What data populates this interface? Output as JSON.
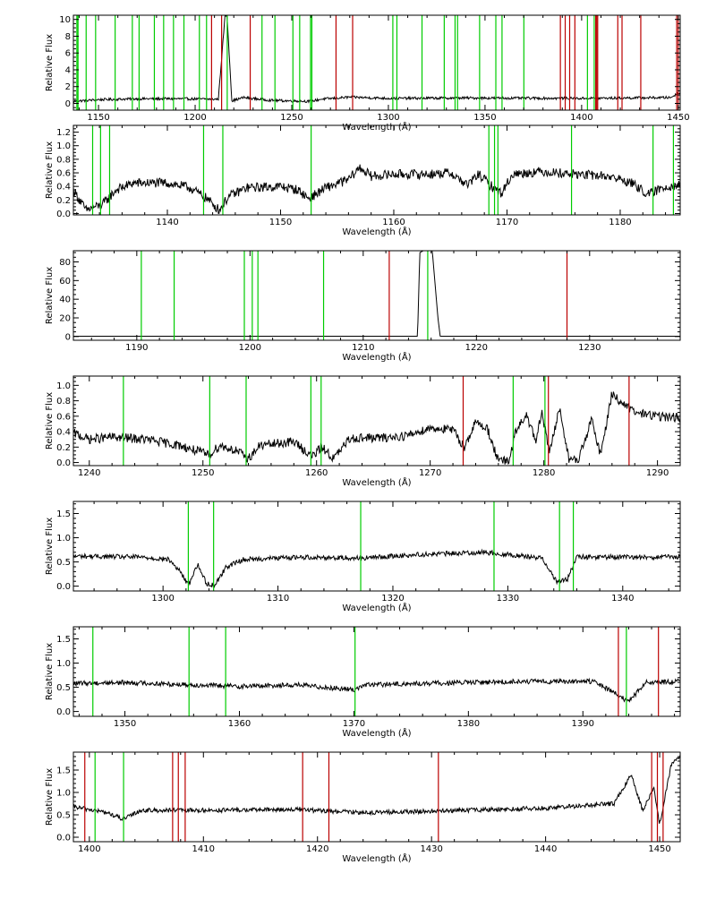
{
  "colors": {
    "background": "#ffffff",
    "spectrum": "#000000",
    "green_line": "#00cc00",
    "red_line": "#bb0000"
  },
  "chart_data": [
    {
      "type": "line",
      "xlabel": "Wavelength (Å)",
      "ylabel": "Relative Flux",
      "xlim": [
        1137,
        1451
      ],
      "ylim": [
        -0.8,
        10.5
      ],
      "xticks": [
        1150,
        1200,
        1250,
        1300,
        1350,
        1400,
        1450
      ],
      "yticks": [
        0,
        2,
        4,
        6,
        8,
        10
      ],
      "series": [
        {
          "points": [
            [
              1137,
              0.25
            ],
            [
              1150,
              0.45
            ],
            [
              1170,
              0.55
            ],
            [
              1195,
              0.55
            ],
            [
              1212,
              0.5
            ],
            [
              1215.5,
              10.5
            ],
            [
              1216.5,
              10.5
            ],
            [
              1219,
              0.3
            ],
            [
              1225,
              0.7
            ],
            [
              1240,
              0.35
            ],
            [
              1260,
              0.25
            ],
            [
              1265,
              0.5
            ],
            [
              1280,
              0.75
            ],
            [
              1300,
              0.6
            ],
            [
              1340,
              0.65
            ],
            [
              1400,
              0.6
            ],
            [
              1446,
              0.7
            ],
            [
              1450,
              1.2
            ]
          ],
          "noise": 0.15
        }
      ],
      "green_lines": [
        1138.8,
        1139.4,
        1143.6,
        1148.5,
        1158.6,
        1167.5,
        1171.0,
        1178.9,
        1183.7,
        1188.8,
        1194.2,
        1202.2,
        1205.9,
        1216.6,
        1234.6,
        1241.3,
        1250.6,
        1254.1,
        1259.7,
        1260.4,
        1302.3,
        1304.4,
        1317.4,
        1328.9,
        1334.5,
        1335.8,
        1347.2,
        1355.6,
        1358.8,
        1370.1,
        1403.0,
        1406.5
      ],
      "red_lines": [
        1208.5,
        1213.7,
        1228.5,
        1272.9,
        1281.5,
        1389.0,
        1391.5,
        1393.8,
        1396.5,
        1407.3,
        1407.8,
        1408.3,
        1418.7,
        1420.9,
        1430.6,
        1449.2,
        1450.0
      ]
    },
    {
      "type": "line",
      "xlabel": "Wavelength (Å)",
      "ylabel": "Relative Flux",
      "xlim": [
        1131.7,
        1185.3
      ],
      "ylim": [
        -0.02,
        1.3
      ],
      "xticks": [
        1140,
        1150,
        1160,
        1170,
        1180
      ],
      "yticks": [
        0.0,
        0.2,
        0.4,
        0.6,
        0.8,
        1.0,
        1.2
      ],
      "series": [
        {
          "points": [
            [
              1131.7,
              0.35
            ],
            [
              1132.8,
              0.05
            ],
            [
              1133.6,
              0.1
            ],
            [
              1134.2,
              0.12
            ],
            [
              1135.5,
              0.35
            ],
            [
              1137,
              0.45
            ],
            [
              1140,
              0.45
            ],
            [
              1142,
              0.38
            ],
            [
              1143.5,
              0.22
            ],
            [
              1144.6,
              0.05
            ],
            [
              1145.4,
              0.25
            ],
            [
              1147,
              0.38
            ],
            [
              1150,
              0.4
            ],
            [
              1151.5,
              0.35
            ],
            [
              1152.5,
              0.22
            ],
            [
              1154,
              0.38
            ],
            [
              1156,
              0.5
            ],
            [
              1157,
              0.68
            ],
            [
              1158,
              0.55
            ],
            [
              1160,
              0.58
            ],
            [
              1163,
              0.58
            ],
            [
              1165,
              0.6
            ],
            [
              1166.5,
              0.42
            ],
            [
              1167.5,
              0.58
            ],
            [
              1168.8,
              0.38
            ],
            [
              1169.5,
              0.3
            ],
            [
              1170.5,
              0.58
            ],
            [
              1173,
              0.62
            ],
            [
              1176,
              0.58
            ],
            [
              1179,
              0.55
            ],
            [
              1181,
              0.45
            ],
            [
              1182.5,
              0.28
            ],
            [
              1184,
              0.4
            ],
            [
              1185.3,
              0.42
            ]
          ],
          "noise": 0.07
        }
      ],
      "green_lines": [
        1133.4,
        1134.1,
        1134.9,
        1143.2,
        1144.9,
        1152.7,
        1168.4,
        1168.9,
        1169.2,
        1175.7,
        1182.9,
        1184.7
      ],
      "red_lines": []
    },
    {
      "type": "line",
      "xlabel": "Wavelength (Å)",
      "ylabel": "Relative Flux",
      "xlim": [
        1184.4,
        1238.0
      ],
      "ylim": [
        -4,
        92
      ],
      "xticks": [
        1190,
        1200,
        1210,
        1220,
        1230
      ],
      "yticks": [
        0,
        20,
        40,
        60,
        80
      ],
      "series": [
        {
          "points": [
            [
              1184.4,
              0.3
            ],
            [
              1214.8,
              0.3
            ],
            [
              1215.0,
              90
            ],
            [
              1215.3,
              92
            ],
            [
              1216.1,
              92
            ],
            [
              1216.6,
              20
            ],
            [
              1216.8,
              0.3
            ],
            [
              1238.0,
              0.3
            ]
          ],
          "noise": 0
        }
      ],
      "green_lines": [
        1190.4,
        1193.3,
        1199.5,
        1200.2,
        1200.7,
        1206.5,
        1215.7
      ],
      "red_lines": [
        1212.3,
        1228.0
      ]
    },
    {
      "type": "line",
      "xlabel": "Wavelength (Å)",
      "ylabel": "Relative Flux",
      "xlim": [
        1238.6,
        1292.0
      ],
      "ylim": [
        -0.04,
        1.12
      ],
      "xticks": [
        1240,
        1250,
        1260,
        1270,
        1280,
        1290
      ],
      "yticks": [
        0.0,
        0.2,
        0.4,
        0.6,
        0.8,
        1.0
      ],
      "series": [
        {
          "points": [
            [
              1238.6,
              0.38
            ],
            [
              1240,
              0.3
            ],
            [
              1242,
              0.33
            ],
            [
              1245,
              0.3
            ],
            [
              1248,
              0.22
            ],
            [
              1250.5,
              0.1
            ],
            [
              1251.5,
              0.22
            ],
            [
              1253,
              0.15
            ],
            [
              1254,
              0.05
            ],
            [
              1255,
              0.22
            ],
            [
              1258,
              0.27
            ],
            [
              1259.6,
              0.08
            ],
            [
              1260.5,
              0.2
            ],
            [
              1261.5,
              0.05
            ],
            [
              1263,
              0.32
            ],
            [
              1266,
              0.32
            ],
            [
              1268,
              0.35
            ],
            [
              1270,
              0.45
            ],
            [
              1272,
              0.42
            ],
            [
              1273,
              0.2
            ],
            [
              1274,
              0.52
            ],
            [
              1275,
              0.45
            ],
            [
              1276,
              0.02
            ],
            [
              1277,
              0.02
            ],
            [
              1277.5,
              0.4
            ],
            [
              1278.5,
              0.62
            ],
            [
              1279.3,
              0.25
            ],
            [
              1279.8,
              0.65
            ],
            [
              1280.5,
              0.15
            ],
            [
              1281.4,
              0.7
            ],
            [
              1282.2,
              0.05
            ],
            [
              1283,
              0.02
            ],
            [
              1284.2,
              0.55
            ],
            [
              1285,
              0.1
            ],
            [
              1286,
              0.9
            ],
            [
              1287,
              0.75
            ],
            [
              1288,
              0.65
            ],
            [
              1290,
              0.6
            ],
            [
              1292,
              0.58
            ]
          ],
          "noise": 0.06
        }
      ],
      "green_lines": [
        1243.0,
        1250.6,
        1253.8,
        1259.5,
        1260.4,
        1277.3,
        1280.1
      ],
      "red_lines": [
        1272.9,
        1280.4,
        1287.5
      ]
    },
    {
      "type": "line",
      "xlabel": "Wavelength (Å)",
      "ylabel": "Relative Flux",
      "xlim": [
        1292.2,
        1345.0
      ],
      "ylim": [
        -0.1,
        1.75
      ],
      "xticks": [
        1300,
        1310,
        1320,
        1330,
        1340
      ],
      "yticks": [
        0.0,
        0.5,
        1.0,
        1.5
      ],
      "series": [
        {
          "points": [
            [
              1292.2,
              0.62
            ],
            [
              1298,
              0.6
            ],
            [
              1300.5,
              0.55
            ],
            [
              1301.5,
              0.3
            ],
            [
              1302.2,
              0.02
            ],
            [
              1303,
              0.45
            ],
            [
              1303.8,
              0.05
            ],
            [
              1304.5,
              0.02
            ],
            [
              1305.5,
              0.4
            ],
            [
              1307,
              0.55
            ],
            [
              1312,
              0.6
            ],
            [
              1317.5,
              0.58
            ],
            [
              1322,
              0.65
            ],
            [
              1328,
              0.7
            ],
            [
              1333,
              0.58
            ],
            [
              1334.3,
              0.08
            ],
            [
              1335.2,
              0.15
            ],
            [
              1336,
              0.6
            ],
            [
              1345,
              0.6
            ]
          ],
          "noise": 0.05
        }
      ],
      "green_lines": [
        1302.2,
        1304.4,
        1317.2,
        1328.8,
        1334.5,
        1335.7
      ],
      "red_lines": []
    },
    {
      "type": "line",
      "xlabel": "Wavelength (Å)",
      "ylabel": "Relative Flux",
      "xlim": [
        1345.5,
        1398.5
      ],
      "ylim": [
        -0.1,
        1.75
      ],
      "xticks": [
        1350,
        1360,
        1370,
        1380,
        1390
      ],
      "yticks": [
        0.0,
        0.5,
        1.0,
        1.5
      ],
      "series": [
        {
          "points": [
            [
              1345.5,
              0.58
            ],
            [
              1350,
              0.6
            ],
            [
              1356,
              0.55
            ],
            [
              1360,
              0.52
            ],
            [
              1365,
              0.55
            ],
            [
              1370,
              0.45
            ],
            [
              1371,
              0.55
            ],
            [
              1380,
              0.6
            ],
            [
              1385,
              0.62
            ],
            [
              1391,
              0.62
            ],
            [
              1393,
              0.35
            ],
            [
              1394,
              0.2
            ],
            [
              1395.5,
              0.6
            ],
            [
              1398.5,
              0.62
            ]
          ],
          "noise": 0.05
        }
      ],
      "green_lines": [
        1347.2,
        1355.6,
        1358.8,
        1370.1,
        1393.8
      ],
      "red_lines": [
        1393.1,
        1396.6
      ]
    },
    {
      "type": "line",
      "xlabel": "Wavelength (Å)",
      "ylabel": "Relative Flux",
      "xlim": [
        1398.6,
        1451.8
      ],
      "ylim": [
        -0.1,
        1.9
      ],
      "xticks": [
        1400,
        1410,
        1420,
        1430,
        1440,
        1450
      ],
      "yticks": [
        0.0,
        0.5,
        1.0,
        1.5
      ],
      "series": [
        {
          "points": [
            [
              1398.6,
              0.68
            ],
            [
              1400,
              0.62
            ],
            [
              1401.5,
              0.55
            ],
            [
              1403,
              0.4
            ],
            [
              1404.5,
              0.6
            ],
            [
              1410,
              0.6
            ],
            [
              1418,
              0.62
            ],
            [
              1421,
              0.58
            ],
            [
              1425,
              0.55
            ],
            [
              1430,
              0.58
            ],
            [
              1440,
              0.65
            ],
            [
              1446,
              0.75
            ],
            [
              1447.5,
              1.4
            ],
            [
              1448.5,
              0.6
            ],
            [
              1449.5,
              1.1
            ],
            [
              1450,
              0.3
            ],
            [
              1451,
              1.6
            ],
            [
              1451.8,
              1.8
            ]
          ],
          "noise": 0.05
        }
      ],
      "green_lines": [
        1400.5,
        1403.0
      ],
      "red_lines": [
        1399.6,
        1407.3,
        1407.8,
        1408.4,
        1418.7,
        1421.0,
        1430.6,
        1449.3,
        1449.8,
        1450.3
      ]
    }
  ]
}
